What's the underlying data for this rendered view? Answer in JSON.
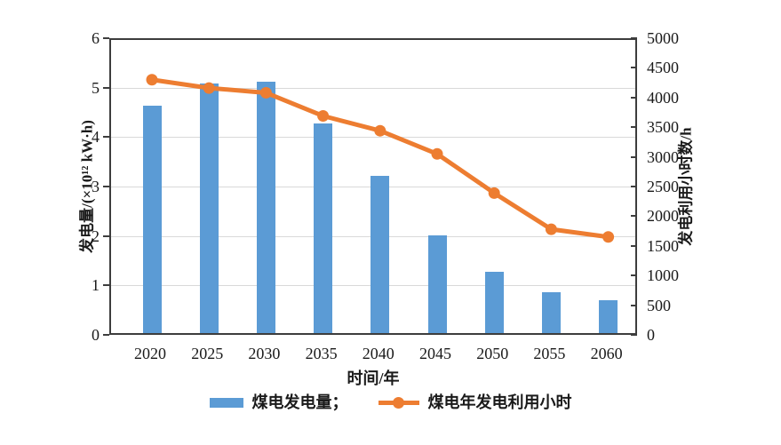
{
  "chart_data": {
    "type": "bar",
    "subtype": "bar-line-combo",
    "categories": [
      "2020",
      "2025",
      "2030",
      "2035",
      "2040",
      "2045",
      "2050",
      "2055",
      "2060"
    ],
    "series": [
      {
        "name": "煤电发电量",
        "type": "bar",
        "axis": "left",
        "color": "#5b9bd5",
        "values": [
          4.6,
          5.05,
          5.08,
          4.24,
          3.18,
          1.98,
          1.24,
          0.82,
          0.66
        ]
      },
      {
        "name": "煤电年发电利用小时",
        "type": "line",
        "axis": "right",
        "color": "#ed7d31",
        "values": [
          4300,
          4160,
          4080,
          3690,
          3440,
          3050,
          2390,
          1780,
          1650
        ]
      }
    ],
    "left_axis": {
      "label": "发电量/(×10¹² kW·h)",
      "min": 0,
      "max": 6,
      "ticks": [
        "0",
        "1",
        "2",
        "3",
        "4",
        "5",
        "6"
      ],
      "tick_values": [
        0,
        1,
        2,
        3,
        4,
        5,
        6
      ]
    },
    "right_axis": {
      "label": "发电利用小时数/h",
      "min": 0,
      "max": 5000,
      "ticks": [
        "0",
        "500",
        "1000",
        "1500",
        "2000",
        "2500",
        "3000",
        "3500",
        "4000",
        "4500",
        "5000"
      ],
      "tick_values": [
        0,
        500,
        1000,
        1500,
        2000,
        2500,
        3000,
        3500,
        4000,
        4500,
        5000
      ]
    },
    "x_axis": {
      "label": "时间/年"
    },
    "grid": {
      "horizontal": true,
      "at_left_values": [
        1,
        2,
        3,
        4,
        5
      ]
    },
    "legend": {
      "position": "bottom",
      "items": [
        {
          "label": "煤电发电量；",
          "swatch": "bar"
        },
        {
          "label": "煤电年发电利用小时",
          "swatch": "line-marker"
        }
      ]
    }
  },
  "colors": {
    "bar": "#5b9bd5",
    "line": "#ed7d31",
    "grid": "#d9d9d9",
    "axis": "#3d3d3d",
    "background": "#ffffff"
  }
}
